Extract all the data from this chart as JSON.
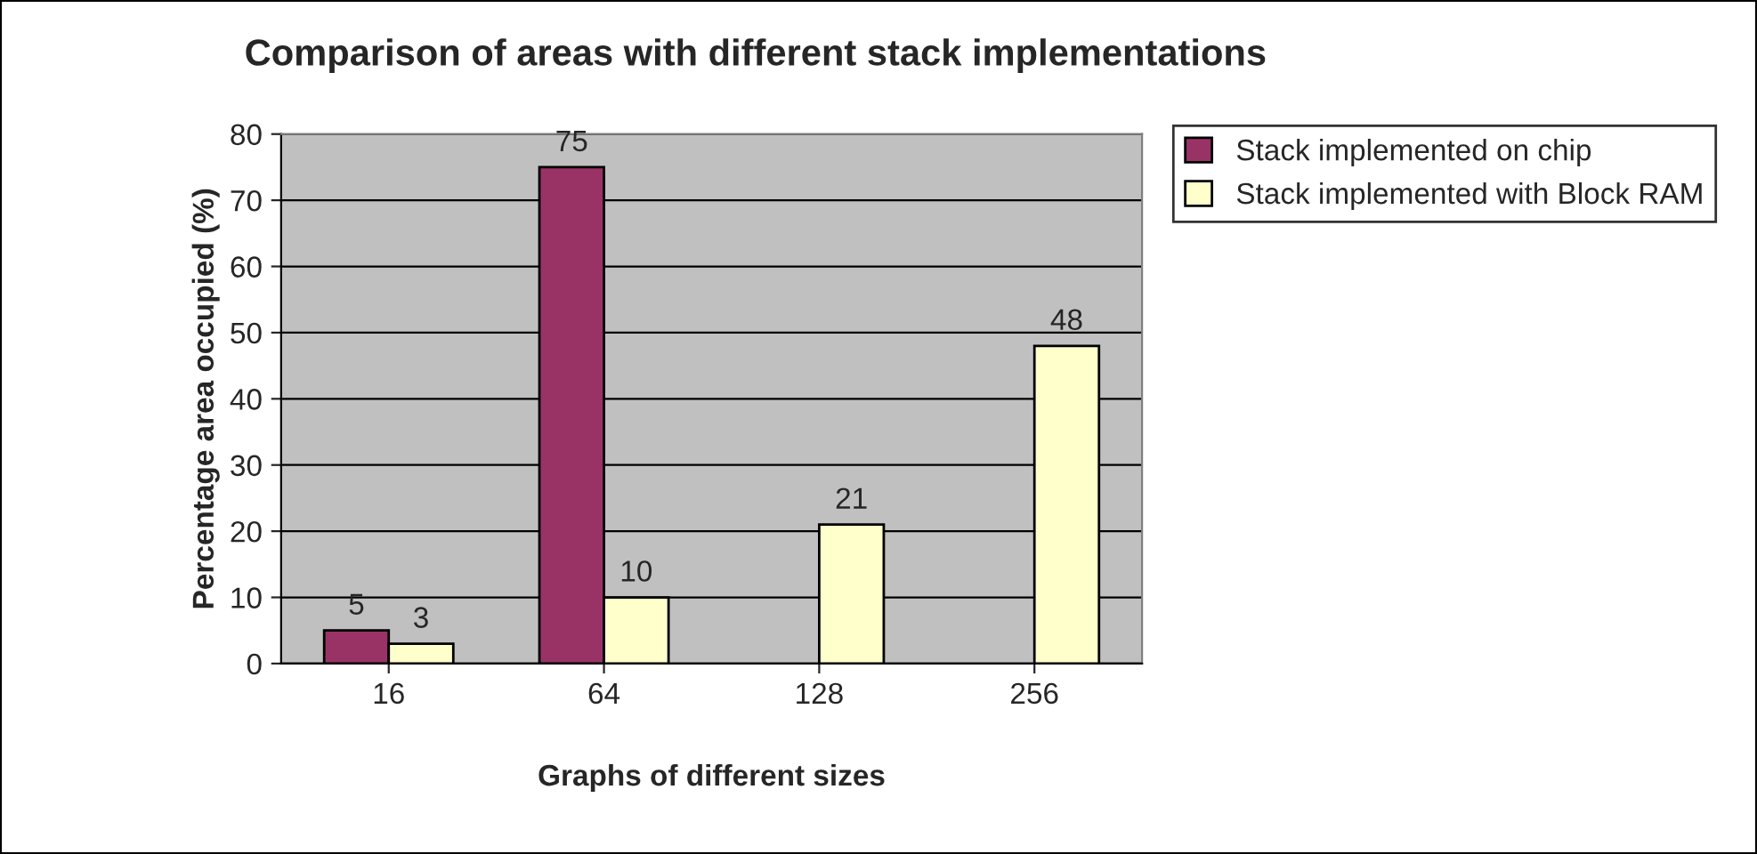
{
  "chart_data": {
    "type": "bar",
    "title": "Comparison of areas with different stack implementations",
    "xlabel": "Graphs of different sizes",
    "ylabel": "Percentage area occupied (%)",
    "categories": [
      "16",
      "64",
      "128",
      "256"
    ],
    "series": [
      {
        "name": "Stack implemented on chip",
        "color": "#993366",
        "values": [
          5,
          75,
          null,
          null
        ]
      },
      {
        "name": "Stack implemented with Block RAM",
        "color": "#ffffcc",
        "values": [
          3,
          10,
          21,
          48
        ]
      }
    ],
    "ylim": [
      0,
      80
    ],
    "yticks": [
      0,
      10,
      20,
      30,
      40,
      50,
      60,
      70,
      80
    ],
    "grid": "y",
    "legend": "top right",
    "data_labels": true
  }
}
